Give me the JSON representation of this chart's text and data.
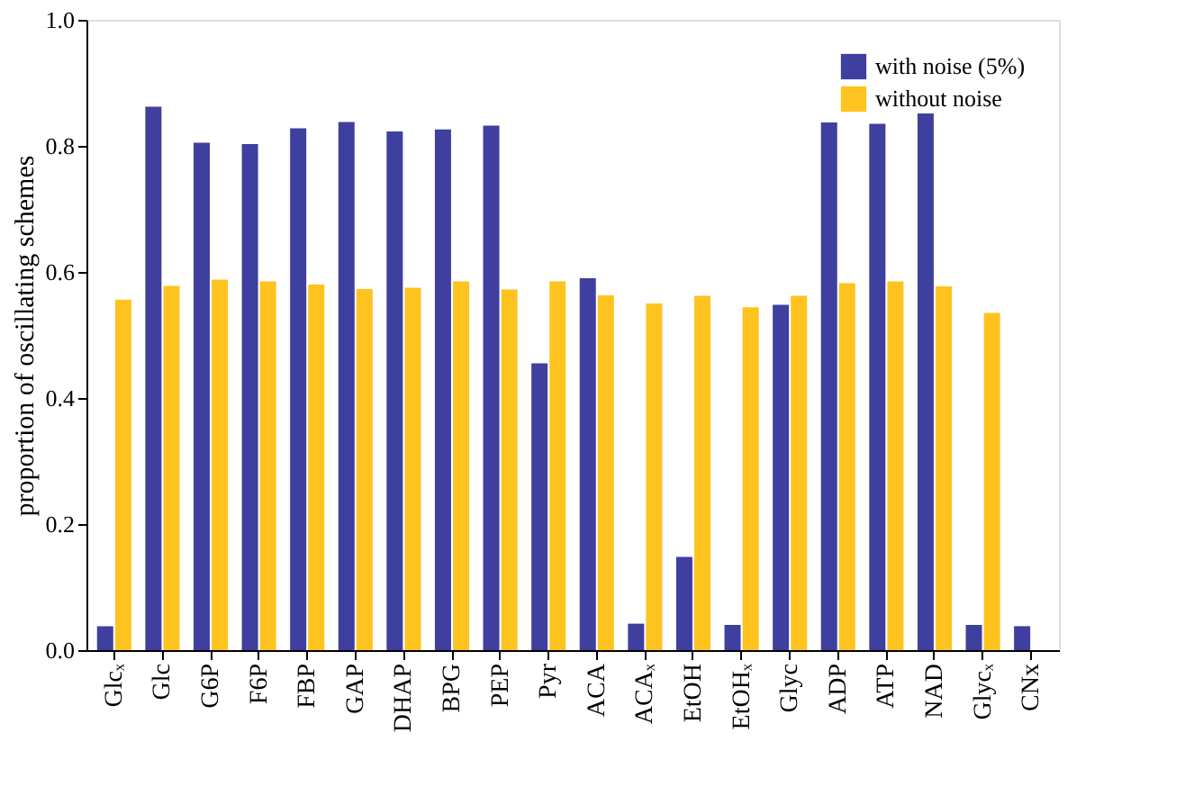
{
  "chart_data": {
    "type": "bar",
    "ylabel": "proportion of oscillating schemes",
    "categories": [
      "Glcₓ",
      "Glc",
      "G6P",
      "F6P",
      "FBP",
      "GAP",
      "DHAP",
      "BPG",
      "PEP",
      "Pyr",
      "ACA",
      "ACAₓ",
      "EtOH",
      "EtOHₓ",
      "Glyc",
      "ADP",
      "ATP",
      "NAD",
      "Glycₓ",
      "CNx"
    ],
    "series": [
      {
        "name": "with noise (5%)",
        "color": "#3f3f9f",
        "values": [
          0.038,
          0.862,
          0.805,
          0.803,
          0.828,
          0.838,
          0.823,
          0.826,
          0.832,
          0.455,
          0.59,
          0.042,
          0.148,
          0.04,
          0.548,
          0.837,
          0.835,
          0.852,
          0.04,
          0.038
        ]
      },
      {
        "name": "without noise",
        "color": "#ffc31f",
        "values": [
          0.556,
          0.578,
          0.588,
          0.585,
          0.58,
          0.573,
          0.575,
          0.585,
          0.572,
          0.585,
          0.563,
          0.55,
          0.562,
          0.544,
          0.562,
          0.582,
          0.585,
          0.577,
          0.535,
          null
        ]
      }
    ],
    "ylim": [
      0,
      1.0
    ],
    "yticks": [
      {
        "value": 0,
        "label": "0.0"
      },
      0.2,
      0.4,
      0.6,
      0.8,
      {
        "value": 1,
        "label": "1.0"
      }
    ],
    "legend": "top right",
    "grid": false
  }
}
